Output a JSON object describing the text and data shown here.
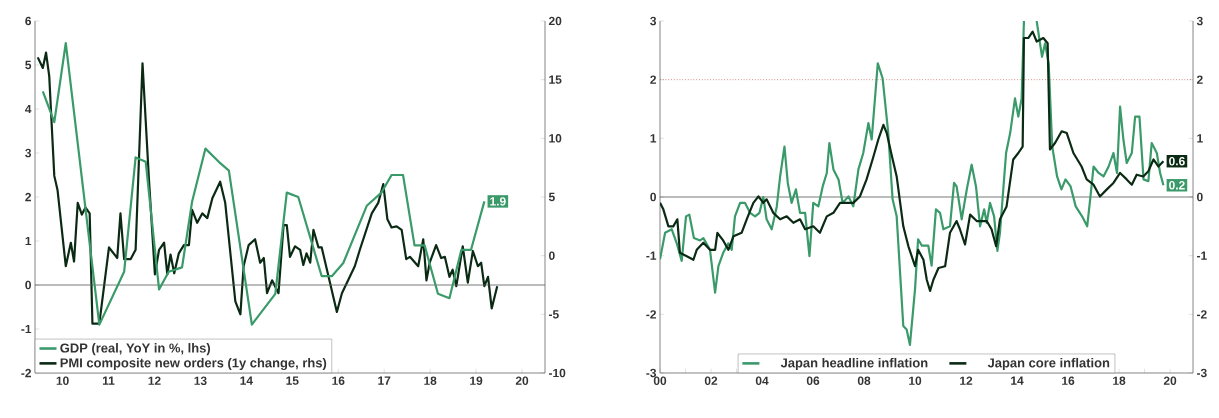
{
  "chart_data": [
    {
      "type": "line",
      "xlim": [
        9.4,
        20.5
      ],
      "xticks": [
        10,
        11,
        12,
        13,
        14,
        15,
        16,
        17,
        18,
        19,
        20
      ],
      "ylim": [
        -2,
        6
      ],
      "yticks": [
        -2,
        -1,
        0,
        1,
        2,
        3,
        4,
        5,
        6
      ],
      "y2lim": [
        -10,
        20
      ],
      "y2ticks": [
        -10,
        -5,
        0,
        5,
        10,
        15,
        20
      ],
      "ref_lines": [
        {
          "axis": "y",
          "value": 0,
          "color": "#555555"
        }
      ],
      "legend": "bottom left",
      "series": [
        {
          "name": "GDP (real, YoY in %, lhs)",
          "color": "#3a9a6a",
          "x": [
            9.57,
            9.82,
            10.07,
            10.8,
            11.34,
            11.59,
            11.81,
            12.1,
            12.31,
            12.6,
            12.82,
            13.11,
            13.4,
            13.62,
            14.12,
            14.63,
            14.88,
            15.13,
            15.64,
            15.86,
            16.11,
            16.62,
            16.94,
            17.16,
            17.41,
            17.66,
            17.88,
            18.17,
            18.42,
            18.68,
            18.89,
            19.18
          ],
          "values": [
            4.4,
            3.7,
            5.5,
            -0.9,
            0.3,
            2.9,
            2.8,
            -0.1,
            0.3,
            0.4,
            1.9,
            3.1,
            2.8,
            2.6,
            -0.9,
            -0.2,
            2.1,
            2.0,
            0.2,
            0.2,
            0.5,
            1.8,
            2.1,
            2.5,
            2.5,
            0.9,
            0.9,
            -0.2,
            -0.3,
            0.8,
            0.8,
            1.9
          ],
          "value_labels": [
            null,
            null,
            null,
            null,
            null,
            null,
            null,
            null,
            null,
            null,
            null,
            null,
            null,
            null,
            null,
            null,
            null,
            null,
            null,
            null,
            null,
            null,
            null,
            null,
            null,
            null,
            null,
            null,
            null,
            null,
            null,
            "1.9"
          ]
        },
        {
          "name": "PMI composite new orders (1y change, rhs)",
          "color": "#0b2a14",
          "axis": "y2",
          "x": [
            9.46,
            9.57,
            9.64,
            9.71,
            9.82,
            9.89,
            10.07,
            10.18,
            10.25,
            10.33,
            10.42,
            10.5,
            10.59,
            10.65,
            10.8,
            11.01,
            11.19,
            11.26,
            11.34,
            11.48,
            11.59,
            11.74,
            11.88,
            12.01,
            12.1,
            12.21,
            12.28,
            12.35,
            12.43,
            12.53,
            12.64,
            12.75,
            12.82,
            12.93,
            13.04,
            13.15,
            13.26,
            13.43,
            13.54,
            13.76,
            13.87,
            13.94,
            14.05,
            14.19,
            14.3,
            14.38,
            14.45,
            14.56,
            14.7,
            14.81,
            14.88,
            14.95,
            15.06,
            15.17,
            15.24,
            15.31,
            15.39,
            15.46,
            15.57,
            15.64,
            15.97,
            16.08,
            16.36,
            16.47,
            16.73,
            16.87,
            16.98,
            17.07,
            17.16,
            17.27,
            17.38,
            17.48,
            17.56,
            17.74,
            17.85,
            17.92,
            17.99,
            18.13,
            18.24,
            18.32,
            18.42,
            18.49,
            18.57,
            18.71,
            18.82,
            18.93,
            19.04,
            19.11,
            19.18,
            19.26,
            19.34,
            19.46
          ],
          "values": [
            16.9,
            16.0,
            17.3,
            15.3,
            6.8,
            5.6,
            -0.9,
            1.1,
            -0.5,
            4.5,
            3.5,
            4.1,
            3.6,
            -5.8,
            -5.8,
            0.7,
            -0.2,
            3.6,
            -0.3,
            -0.3,
            0.5,
            16.4,
            6.5,
            -1.6,
            0.5,
            1.1,
            -1.6,
            0.1,
            -1.5,
            0.2,
            0.9,
            0.9,
            3.9,
            2.8,
            3.6,
            3.2,
            4.9,
            6.3,
            4.5,
            -3.9,
            -5.0,
            -0.9,
            0.9,
            1.4,
            -0.6,
            -0.2,
            -3.2,
            -2.1,
            -3.2,
            2.6,
            2.6,
            -0.1,
            0.8,
            0.5,
            -0.8,
            0.2,
            -0.6,
            2.2,
            0.7,
            0.7,
            -4.8,
            -3.2,
            -0.9,
            0.5,
            3.6,
            4.5,
            6.1,
            3.1,
            2.4,
            2.5,
            2.2,
            -0.3,
            -0.1,
            -0.9,
            1.4,
            -2.1,
            -0.6,
            0.9,
            -0.2,
            -0.1,
            -1.8,
            -1.2,
            -2.6,
            0.8,
            -2.3,
            0.4,
            -0.9,
            -0.6,
            -2.6,
            -1.8,
            -4.5,
            -2.6
          ]
        }
      ]
    },
    {
      "type": "line",
      "xlim": [
        2000,
        2020.9
      ],
      "xticks": [
        {
          "value": 2000,
          "label": "00"
        },
        {
          "value": 2001,
          "label": null
        },
        {
          "value": 2002,
          "label": "02"
        },
        {
          "value": 2003,
          "label": null
        },
        {
          "value": 2004,
          "label": "04"
        },
        {
          "value": 2005,
          "label": null
        },
        {
          "value": 2006,
          "label": "06"
        },
        {
          "value": 2007,
          "label": null
        },
        {
          "value": 2008,
          "label": "08"
        },
        {
          "value": 2009,
          "label": null
        },
        {
          "value": 2010,
          "label": "10"
        },
        {
          "value": 2011,
          "label": null
        },
        {
          "value": 2012,
          "label": "12"
        },
        {
          "value": 2013,
          "label": null
        },
        {
          "value": 2014,
          "label": "14"
        },
        {
          "value": 2015,
          "label": null
        },
        {
          "value": 2016,
          "label": "16"
        },
        {
          "value": 2017,
          "label": null
        },
        {
          "value": 2018,
          "label": "18"
        },
        {
          "value": 2019,
          "label": null
        },
        {
          "value": 2020,
          "label": "20"
        }
      ],
      "ylim": [
        -3,
        3
      ],
      "yticks": [
        -3,
        -2,
        -1,
        0,
        1,
        2,
        3
      ],
      "y2lim": [
        -3,
        3
      ],
      "y2ticks": [
        -3,
        -2,
        -1,
        0,
        1,
        2,
        3
      ],
      "ref_lines": [
        {
          "axis": "y",
          "value": 2,
          "color": "#c0504d",
          "line_style": "dotted"
        },
        {
          "axis": "y",
          "value": 0,
          "color": "#555555"
        }
      ],
      "legend": "bottom",
      "series": [
        {
          "name": "Japan headline inflation",
          "color": "#3a9a6a",
          "x": [
            2000,
            2000.2,
            2000.46,
            2000.65,
            2000.85,
            2001.02,
            2001.15,
            2001.33,
            2001.57,
            2001.7,
            2001.96,
            2002.16,
            2002.29,
            2002.48,
            2002.68,
            2002.81,
            2002.94,
            2003.14,
            2003.33,
            2003.53,
            2003.73,
            2003.9,
            2004.05,
            2004.18,
            2004.38,
            2004.58,
            2004.71,
            2004.88,
            2005.01,
            2005.16,
            2005.33,
            2005.49,
            2005.69,
            2005.86,
            2006.01,
            2006.21,
            2006.38,
            2006.54,
            2006.64,
            2006.8,
            2007,
            2007.16,
            2007.39,
            2007.58,
            2007.78,
            2007.97,
            2008.17,
            2008.3,
            2008.54,
            2008.73,
            2008.95,
            2009.12,
            2009.28,
            2009.54,
            2009.67,
            2009.8,
            2010,
            2010.12,
            2010.27,
            2010.52,
            2010.65,
            2010.82,
            2010.98,
            2011.11,
            2011.37,
            2011.53,
            2011.63,
            2011.83,
            2012.03,
            2012.22,
            2012.39,
            2012.55,
            2012.71,
            2012.81,
            2012.94,
            2013.1,
            2013.23,
            2013.33,
            2013.57,
            2013.73,
            2013.92,
            2014.05,
            2014.18,
            2014.27,
            2014.5,
            2014.77,
            2014.98,
            2015.1,
            2015.24,
            2015.38,
            2015.57,
            2015.74,
            2015.9,
            2016.1,
            2016.3,
            2016.55,
            2016.75,
            2016.88,
            2017,
            2017.2,
            2017.39,
            2017.59,
            2017.78,
            2017.92,
            2018.04,
            2018.17,
            2018.3,
            2018.5,
            2018.63,
            2018.8,
            2018.96,
            2019.15,
            2019.28,
            2019.48,
            2019.61,
            2019.74
          ],
          "values": [
            -1.06,
            -0.61,
            -0.55,
            -0.78,
            -1.09,
            -0.33,
            -0.3,
            -0.7,
            -0.74,
            -0.7,
            -0.9,
            -1.63,
            -1.18,
            -0.95,
            -0.79,
            -0.9,
            -0.33,
            -0.1,
            -0.1,
            -0.27,
            -0.33,
            -0.27,
            0.0,
            -0.38,
            -0.55,
            -0.16,
            0.35,
            0.86,
            0.24,
            -0.1,
            0.13,
            -0.27,
            -0.27,
            -1.01,
            -0.1,
            -0.16,
            0.18,
            0.41,
            0.92,
            0.47,
            0.3,
            -0.1,
            0.01,
            -0.16,
            0.47,
            0.75,
            1.26,
            0.98,
            2.28,
            2.02,
            1.09,
            -0.04,
            -0.33,
            -2.2,
            -2.26,
            -2.52,
            -1.57,
            -0.72,
            -0.83,
            -0.83,
            -1.17,
            -0.21,
            -0.27,
            -0.55,
            -0.5,
            0.24,
            0.18,
            -0.38,
            0.13,
            0.55,
            0.18,
            -0.5,
            -0.21,
            -0.44,
            -0.1,
            -0.33,
            -0.92,
            -0.61,
            0.75,
            1.09,
            1.68,
            1.37,
            1.68,
            3.0,
            null,
            3.0,
            2.39,
            2.62,
            2.27,
            0.86,
            0.35,
            0.13,
            0.3,
            0.18,
            -0.16,
            -0.33,
            -0.5,
            0.01,
            0.52,
            0.41,
            0.35,
            0.52,
            0.75,
            0.41,
            1.54,
            0.98,
            0.58,
            0.75,
            1.37,
            1.37,
            0.3,
            0.27,
            0.92,
            0.75,
            0.41,
            0.2
          ],
          "value_labels": [
            null,
            null,
            null,
            null,
            null,
            null,
            null,
            null,
            null,
            null,
            null,
            null,
            null,
            null,
            null,
            null,
            null,
            null,
            null,
            null,
            null,
            null,
            null,
            null,
            null,
            null,
            null,
            null,
            null,
            null,
            null,
            null,
            null,
            null,
            null,
            null,
            null,
            null,
            null,
            null,
            null,
            null,
            null,
            null,
            null,
            null,
            null,
            null,
            null,
            null,
            null,
            null,
            null,
            null,
            null,
            null,
            null,
            null,
            null,
            null,
            null,
            null,
            null,
            null,
            null,
            null,
            null,
            null,
            null,
            null,
            null,
            null,
            null,
            null,
            null,
            null,
            null,
            null,
            null,
            null,
            null,
            null,
            null,
            null,
            null,
            null,
            null,
            null,
            null,
            null,
            null,
            null,
            null,
            null,
            null,
            null,
            null,
            null,
            null,
            null,
            null,
            null,
            null,
            null,
            null,
            null,
            null,
            null,
            null,
            null,
            null,
            null,
            null,
            null,
            null,
            "0.2"
          ]
        },
        {
          "name": "Japan core inflation",
          "color": "#0b2a14",
          "x": [
            2000,
            2000.13,
            2000.33,
            2000.52,
            2000.68,
            2000.78,
            2001.05,
            2001.31,
            2001.44,
            2001.7,
            2001.96,
            2002.16,
            2002.25,
            2002.46,
            2002.68,
            2002.88,
            2003.2,
            2003.4,
            2003.66,
            2003.86,
            2004.05,
            2004.18,
            2004.44,
            2004.71,
            2004.97,
            2005.23,
            2005.49,
            2005.69,
            2006.01,
            2006.27,
            2006.54,
            2006.8,
            2007.06,
            2007.58,
            2007.84,
            2008.1,
            2008.37,
            2008.56,
            2008.76,
            2008.89,
            2009.08,
            2009.28,
            2009.54,
            2009.74,
            2010,
            2010.12,
            2010.33,
            2010.46,
            2010.59,
            2010.72,
            2010.92,
            2011.18,
            2011.37,
            2011.63,
            2011.76,
            2011.96,
            2012.16,
            2012.42,
            2012.81,
            2013,
            2013.18,
            2013.33,
            2013.59,
            2013.85,
            2014.05,
            2014.22,
            2014.27,
            2014.44,
            2014.61,
            2014.77,
            2015.03,
            2015.2,
            2015.29,
            2015.49,
            2015.75,
            2015.95,
            2016.21,
            2016.53,
            2016.73,
            2017,
            2017.25,
            2017.52,
            2017.78,
            2018.04,
            2018.3,
            2018.5,
            2018.69,
            2018.95,
            2019.15,
            2019.35,
            2019.54,
            2019.74
          ],
          "values": [
            -0.1,
            -0.21,
            -0.5,
            -0.5,
            -0.38,
            -0.95,
            -1.01,
            -1.07,
            -0.9,
            -0.78,
            -0.9,
            -0.9,
            -0.61,
            -0.73,
            -0.9,
            -0.67,
            -0.61,
            -0.38,
            -0.1,
            0.01,
            -0.1,
            -0.04,
            -0.27,
            -0.38,
            -0.33,
            -0.44,
            -0.38,
            -0.55,
            -0.5,
            -0.61,
            -0.33,
            -0.27,
            -0.1,
            -0.1,
            0.01,
            0.3,
            0.69,
            0.98,
            1.23,
            1.09,
            0.72,
            0.35,
            -0.5,
            -0.84,
            -1.18,
            -0.9,
            -1.07,
            -1.41,
            -1.6,
            -1.41,
            -1.21,
            -1.18,
            -0.61,
            -0.41,
            -0.55,
            -0.81,
            -0.3,
            -0.41,
            -0.41,
            -0.55,
            -0.84,
            -0.38,
            -0.16,
            0.64,
            0.75,
            0.86,
            2.71,
            2.71,
            2.82,
            2.65,
            2.71,
            2.62,
            0.81,
            0.92,
            1.12,
            1.09,
            0.75,
            0.52,
            0.3,
            0.21,
            0.01,
            0.13,
            0.24,
            0.41,
            0.3,
            0.21,
            0.38,
            0.35,
            0.44,
            0.64,
            0.52,
            0.61
          ],
          "value_labels": [
            null,
            null,
            null,
            null,
            null,
            null,
            null,
            null,
            null,
            null,
            null,
            null,
            null,
            null,
            null,
            null,
            null,
            null,
            null,
            null,
            null,
            null,
            null,
            null,
            null,
            null,
            null,
            null,
            null,
            null,
            null,
            null,
            null,
            null,
            null,
            null,
            null,
            null,
            null,
            null,
            null,
            null,
            null,
            null,
            null,
            null,
            null,
            null,
            null,
            null,
            null,
            null,
            null,
            null,
            null,
            null,
            null,
            null,
            null,
            null,
            null,
            null,
            null,
            null,
            null,
            null,
            null,
            null,
            null,
            null,
            null,
            null,
            null,
            null,
            null,
            null,
            null,
            null,
            null,
            null,
            null,
            null,
            null,
            null,
            null,
            null,
            null,
            null,
            null,
            null,
            null,
            "0.6"
          ]
        }
      ]
    }
  ]
}
